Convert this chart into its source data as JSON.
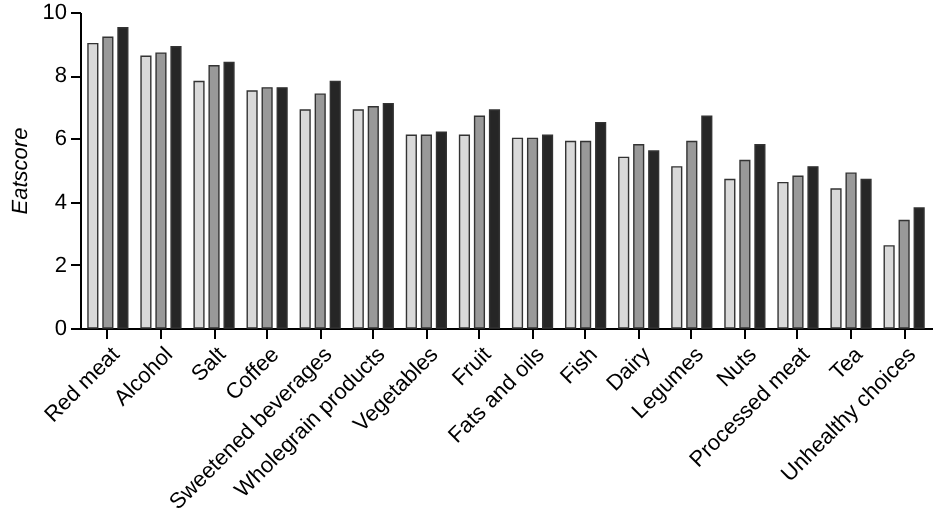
{
  "chart_data": {
    "type": "bar",
    "ylabel": "Eatscore",
    "categories": [
      "Red meat",
      "Alcohol",
      "Salt",
      "Coffee",
      "Sweetened beverages",
      "Wholegrain products",
      "Vegetables",
      "Fruit",
      "Fats and oils",
      "Fish",
      "Dairy",
      "Legumes",
      "Nuts",
      "Processed meat",
      "Tea",
      "Unhealthy choices"
    ],
    "series": [
      {
        "color": "#d9d9d9",
        "values": [
          9.0,
          8.6,
          7.8,
          7.5,
          6.9,
          6.9,
          6.1,
          6.1,
          6.0,
          5.9,
          5.4,
          5.1,
          4.7,
          4.6,
          4.4,
          2.6
        ]
      },
      {
        "color": "#999999",
        "values": [
          9.2,
          8.7,
          8.3,
          7.6,
          7.4,
          7.0,
          6.1,
          6.7,
          6.0,
          5.9,
          5.8,
          5.9,
          5.3,
          4.8,
          4.9,
          3.4
        ]
      },
      {
        "color": "#262626",
        "values": [
          9.5,
          8.9,
          8.4,
          7.6,
          7.8,
          7.1,
          6.2,
          6.9,
          6.1,
          6.5,
          5.6,
          6.7,
          5.8,
          5.1,
          4.7,
          3.8
        ]
      }
    ],
    "ylim": [
      0,
      10
    ],
    "yticks": [
      0,
      2,
      4,
      6,
      8,
      10
    ],
    "grid": false
  }
}
